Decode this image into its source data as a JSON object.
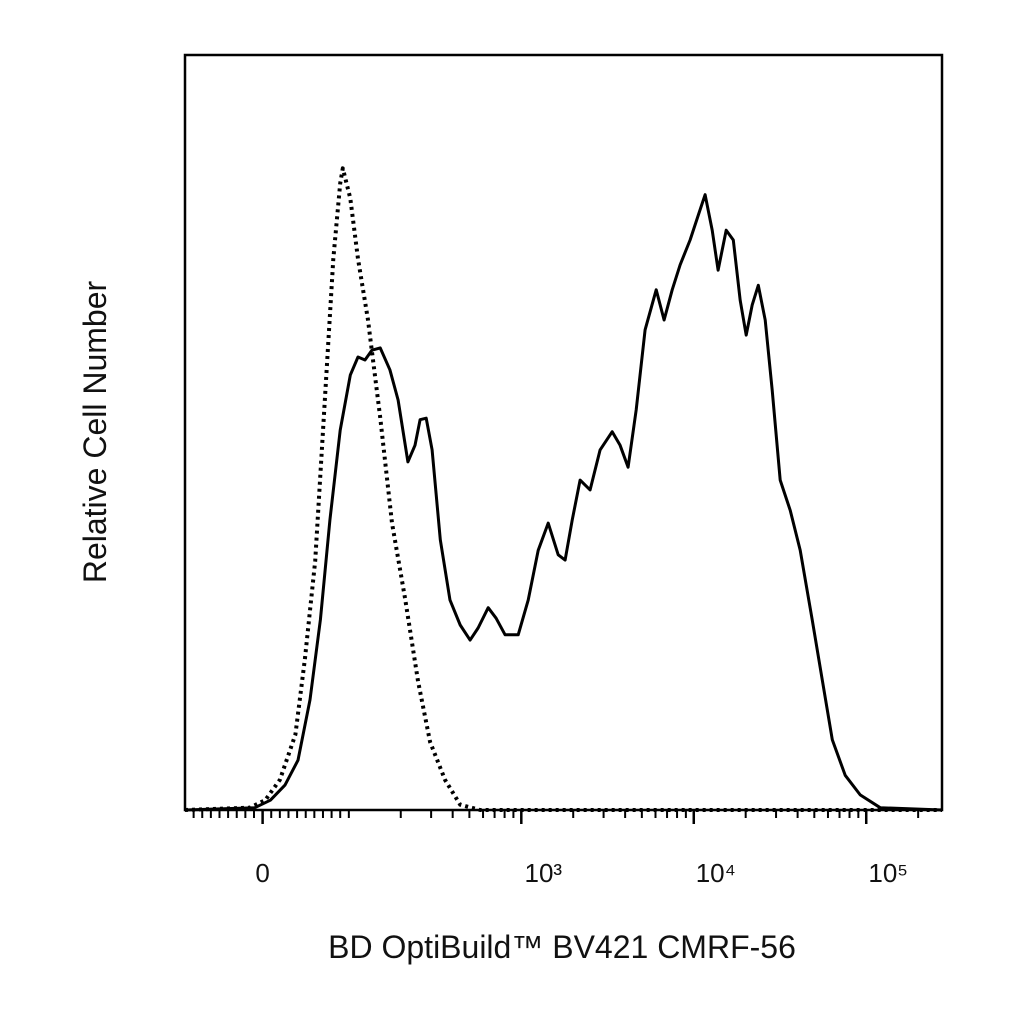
{
  "chart_data": {
    "type": "line",
    "xlabel": "BD OptiBuild™ BV421 CMRF-56",
    "ylabel": "Relative Cell Number",
    "xscale": "symlog",
    "linthresh": 100,
    "linscale": 0.5,
    "xlim": [
      -90,
      275000
    ],
    "ylim": [
      0,
      100
    ],
    "xticks": [
      0,
      {
        "value": 1000,
        "label": "10³"
      },
      {
        "value": 10000,
        "label": "10⁴"
      },
      {
        "value": 100000,
        "label": "10⁵"
      }
    ],
    "xminorticks": [
      -80,
      -70,
      -60,
      -50,
      -40,
      -30,
      -20,
      -10,
      10,
      20,
      30,
      40,
      50,
      60,
      70,
      80,
      90,
      100,
      200,
      300,
      400,
      500,
      600,
      700,
      800,
      900,
      2000,
      3000,
      4000,
      5000,
      6000,
      7000,
      8000,
      9000,
      20000,
      30000,
      40000,
      50000,
      60000,
      70000,
      80000,
      90000,
      200000
    ],
    "series": [
      {
        "color": "#000000",
        "dash": "solid",
        "x": [
          -90,
          -9,
          9,
          26,
          41,
          55,
          67,
          78,
          90,
          102,
          113,
          124,
          136,
          152,
          173,
          193,
          220,
          242,
          259,
          281,
          304,
          339,
          386,
          442,
          505,
          562,
          643,
          714,
          805,
          959,
          1096,
          1253,
          1432,
          1637,
          1795,
          1972,
          2193,
          2506,
          2864,
          3365,
          3741,
          4159,
          4634,
          5224,
          6053,
          6730,
          7499,
          8337,
          9528,
          10617,
          11641,
          12794,
          13836,
          15417,
          16943,
          18578,
          20137,
          21827,
          23659,
          25942,
          28510,
          31695,
          36224,
          41400,
          48640,
          55590,
          63530,
          75510,
          92260,
          120500,
          275000
        ],
        "values": [
          0,
          0.3,
          1.3,
          3.3,
          6.6,
          14.6,
          25.2,
          38.4,
          50.3,
          57.6,
          60,
          59.6,
          60.9,
          61.2,
          58.3,
          54.3,
          46.1,
          48.3,
          51.7,
          51.9,
          47.7,
          35.8,
          27.8,
          24.5,
          22.5,
          24.1,
          26.8,
          25.4,
          23.2,
          23.2,
          27.8,
          34.4,
          38,
          33.8,
          33.1,
          38.4,
          43.7,
          42.4,
          47.7,
          50.1,
          48.3,
          45.4,
          53,
          63.6,
          68.9,
          64.9,
          68.9,
          72.2,
          75.5,
          78.8,
          81.5,
          76.8,
          71.5,
          76.8,
          75.5,
          67.5,
          62.9,
          66.9,
          69.5,
          64.9,
          55.6,
          43.7,
          39.7,
          34.4,
          25.2,
          17.2,
          9.3,
          4.6,
          2,
          0.3,
          0
        ]
      },
      {
        "color": "#000000",
        "dash": "dotted",
        "x": [
          -90,
          -15,
          3,
          20,
          38,
          49,
          61,
          72,
          82,
          90,
          93,
          102,
          113,
          129,
          152,
          178,
          212,
          252,
          296,
          361,
          442,
          577,
          275000
        ],
        "values": [
          0,
          0.3,
          1.3,
          4,
          10,
          20,
          33,
          54,
          73,
          83,
          85,
          81,
          73,
          65,
          52,
          38,
          28,
          17,
          9,
          4,
          0.7,
          0,
          0
        ]
      }
    ]
  }
}
